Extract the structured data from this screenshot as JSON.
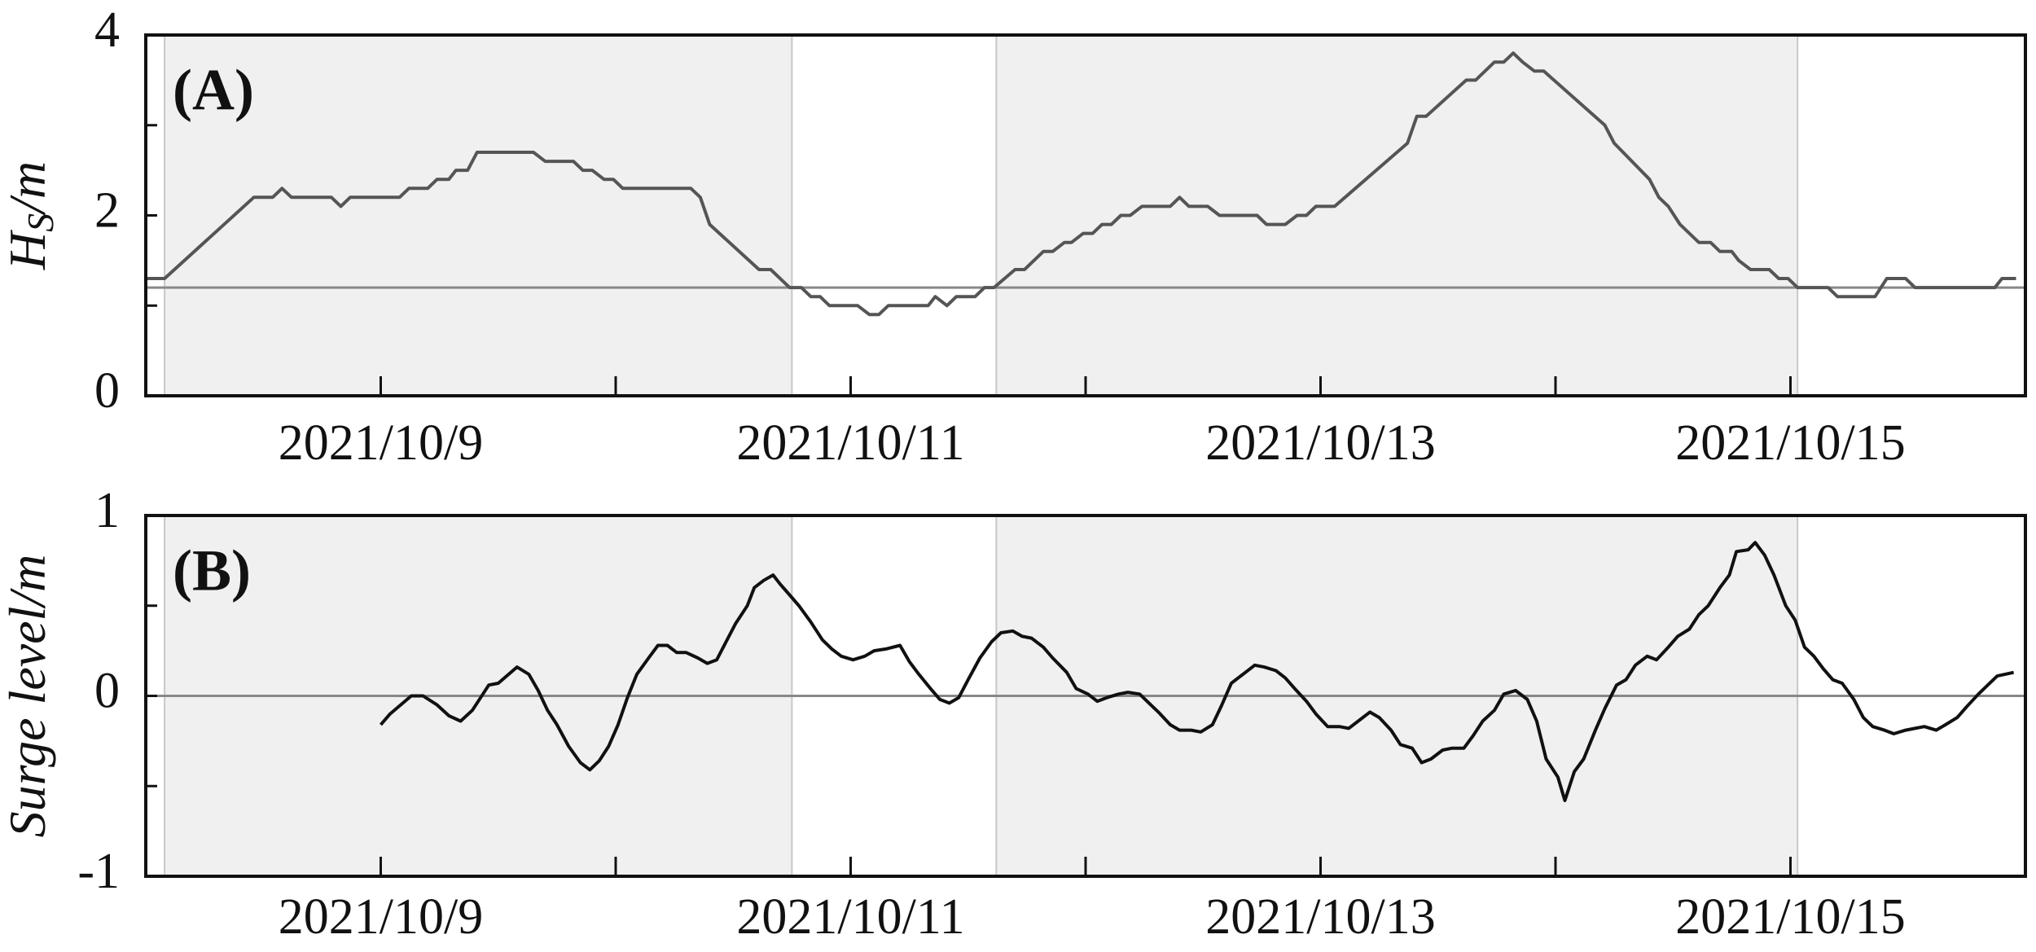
{
  "chart_data": [
    {
      "type": "line",
      "label": "(A)",
      "ylabel": {
        "main": "H",
        "sub": "S",
        "rest": "/m"
      },
      "color": "#555555",
      "hline": 1.2,
      "shaded_regions": [
        [
          8.08,
          10.75
        ],
        [
          11.62,
          15.03
        ]
      ],
      "xlim": [
        8,
        16
      ],
      "xticks": [
        {
          "value": 9,
          "label": "2021/10/9"
        },
        {
          "value": 11,
          "label": "2021/10/11"
        },
        {
          "value": 13,
          "label": "2021/10/13"
        },
        {
          "value": 15,
          "label": "2021/10/15"
        }
      ],
      "xminorticks": [
        10,
        12,
        14
      ],
      "ylim": [
        0,
        4
      ],
      "yticks": [
        0,
        2,
        4
      ],
      "yminorticks": [
        1,
        3
      ],
      "x": [
        8.0,
        8.08,
        8.46,
        8.54,
        8.58,
        8.62,
        8.79,
        8.83,
        8.87,
        9.08,
        9.12,
        9.2,
        9.24,
        9.29,
        9.32,
        9.37,
        9.41,
        9.65,
        9.7,
        9.82,
        9.86,
        9.9,
        9.95,
        9.99,
        10.03,
        10.32,
        10.36,
        10.4,
        10.61,
        10.66,
        10.74,
        10.79,
        10.83,
        10.87,
        10.91,
        11.03,
        11.08,
        11.12,
        11.16,
        11.33,
        11.36,
        11.41,
        11.45,
        11.53,
        11.57,
        11.61,
        11.7,
        11.74,
        11.82,
        11.86,
        11.91,
        11.94,
        11.99,
        12.03,
        12.07,
        12.11,
        12.15,
        12.19,
        12.24,
        12.36,
        12.4,
        12.44,
        12.52,
        12.57,
        12.73,
        12.77,
        12.85,
        12.9,
        12.94,
        12.98,
        13.06,
        13.37,
        13.41,
        13.45,
        13.62,
        13.66,
        13.74,
        13.78,
        13.82,
        13.86,
        13.91,
        13.95,
        14.21,
        14.25,
        14.4,
        14.44,
        14.48,
        14.53,
        14.61,
        14.66,
        14.7,
        14.75,
        14.78,
        14.83,
        14.91,
        14.95,
        14.99,
        15.03,
        15.16,
        15.2,
        15.36,
        15.41,
        15.49,
        15.53,
        15.87,
        15.9,
        15.96
      ],
      "values": [
        1.3,
        1.3,
        2.2,
        2.2,
        2.3,
        2.2,
        2.2,
        2.1,
        2.2,
        2.2,
        2.3,
        2.3,
        2.4,
        2.4,
        2.5,
        2.5,
        2.7,
        2.7,
        2.6,
        2.6,
        2.5,
        2.5,
        2.4,
        2.4,
        2.3,
        2.3,
        2.2,
        1.9,
        1.4,
        1.4,
        1.2,
        1.2,
        1.1,
        1.1,
        1.0,
        1.0,
        0.9,
        0.9,
        1.0,
        1.0,
        1.1,
        1.0,
        1.1,
        1.1,
        1.2,
        1.2,
        1.4,
        1.4,
        1.6,
        1.6,
        1.7,
        1.7,
        1.8,
        1.8,
        1.9,
        1.9,
        2.0,
        2.0,
        2.1,
        2.1,
        2.2,
        2.1,
        2.1,
        2.0,
        2.0,
        1.9,
        1.9,
        2.0,
        2.0,
        2.1,
        2.1,
        2.8,
        3.1,
        3.1,
        3.5,
        3.5,
        3.7,
        3.7,
        3.8,
        3.7,
        3.6,
        3.6,
        3.0,
        2.8,
        2.4,
        2.2,
        2.1,
        1.9,
        1.7,
        1.7,
        1.6,
        1.6,
        1.5,
        1.4,
        1.4,
        1.3,
        1.3,
        1.2,
        1.2,
        1.1,
        1.1,
        1.3,
        1.3,
        1.2,
        1.2,
        1.3,
        1.3
      ]
    },
    {
      "type": "line",
      "label": "(B)",
      "ylabel": {
        "main": "Surge level/m"
      },
      "color": "#111111",
      "hline": 0,
      "shaded_regions": [
        [
          8.08,
          10.75
        ],
        [
          11.62,
          15.03
        ]
      ],
      "xlim": [
        8,
        16
      ],
      "xticks": [
        {
          "value": 9,
          "label": "2021/10/9"
        },
        {
          "value": 11,
          "label": "2021/10/11"
        },
        {
          "value": 13,
          "label": "2021/10/13"
        },
        {
          "value": 15,
          "label": "2021/10/15"
        }
      ],
      "xminorticks": [
        10,
        12,
        14
      ],
      "ylim": [
        -1,
        1
      ],
      "yticks": [
        -1,
        0,
        1
      ],
      "yminorticks": [
        -0.5,
        0.5
      ],
      "x": [
        9.0,
        9.04,
        9.13,
        9.18,
        9.24,
        9.29,
        9.34,
        9.39,
        9.46,
        9.5,
        9.58,
        9.63,
        9.67,
        9.71,
        9.75,
        9.8,
        9.85,
        9.89,
        9.93,
        9.97,
        10.01,
        10.05,
        10.09,
        10.14,
        10.18,
        10.22,
        10.26,
        10.3,
        10.35,
        10.39,
        10.43,
        10.47,
        10.51,
        10.56,
        10.59,
        10.63,
        10.67,
        10.7,
        10.74,
        10.78,
        10.83,
        10.88,
        10.92,
        10.96,
        11.01,
        11.06,
        11.1,
        11.15,
        11.21,
        11.25,
        11.29,
        11.34,
        11.38,
        11.42,
        11.46,
        11.5,
        11.55,
        11.6,
        11.64,
        11.69,
        11.73,
        11.77,
        11.82,
        11.86,
        11.92,
        11.96,
        12.01,
        12.05,
        12.09,
        12.14,
        12.18,
        12.23,
        12.27,
        12.31,
        12.36,
        12.4,
        12.45,
        12.49,
        12.54,
        12.58,
        12.62,
        12.67,
        12.72,
        12.76,
        12.81,
        12.85,
        12.89,
        12.94,
        12.98,
        13.03,
        13.08,
        13.12,
        13.16,
        13.21,
        13.25,
        13.3,
        13.34,
        13.39,
        13.43,
        13.47,
        13.52,
        13.56,
        13.61,
        13.65,
        13.69,
        13.74,
        13.78,
        13.83,
        13.88,
        13.92,
        13.96,
        14.01,
        14.04,
        14.08,
        14.12,
        14.17,
        14.21,
        14.26,
        14.3,
        14.34,
        14.39,
        14.43,
        14.48,
        14.52,
        14.57,
        14.61,
        14.65,
        14.7,
        14.74,
        14.77,
        14.82,
        14.85,
        14.89,
        14.93,
        14.98,
        15.02,
        15.06,
        15.1,
        15.14,
        15.18,
        15.22,
        15.27,
        15.31,
        15.35,
        15.4,
        15.44,
        15.49,
        15.53,
        15.57,
        15.62,
        15.66,
        15.71,
        15.75,
        15.8,
        15.84,
        15.88,
        15.95
      ],
      "values": [
        -0.16,
        -0.1,
        0.0,
        0.0,
        -0.05,
        -0.11,
        -0.14,
        -0.08,
        0.06,
        0.07,
        0.16,
        0.12,
        0.03,
        -0.08,
        -0.16,
        -0.28,
        -0.37,
        -0.41,
        -0.36,
        -0.28,
        -0.16,
        -0.01,
        0.12,
        0.21,
        0.28,
        0.28,
        0.24,
        0.24,
        0.21,
        0.18,
        0.2,
        0.3,
        0.4,
        0.5,
        0.6,
        0.64,
        0.67,
        0.62,
        0.56,
        0.5,
        0.41,
        0.31,
        0.26,
        0.22,
        0.2,
        0.22,
        0.25,
        0.26,
        0.28,
        0.19,
        0.12,
        0.04,
        -0.02,
        -0.04,
        -0.01,
        0.09,
        0.21,
        0.3,
        0.35,
        0.36,
        0.33,
        0.32,
        0.27,
        0.21,
        0.13,
        0.04,
        0.01,
        -0.03,
        -0.01,
        0.01,
        0.02,
        0.01,
        -0.04,
        -0.09,
        -0.16,
        -0.19,
        -0.19,
        -0.2,
        -0.16,
        -0.05,
        0.07,
        0.12,
        0.17,
        0.16,
        0.14,
        0.1,
        0.04,
        -0.03,
        -0.1,
        -0.17,
        -0.17,
        -0.18,
        -0.14,
        -0.09,
        -0.12,
        -0.19,
        -0.27,
        -0.29,
        -0.37,
        -0.35,
        -0.3,
        -0.29,
        -0.29,
        -0.22,
        -0.14,
        -0.08,
        0.01,
        0.03,
        -0.02,
        -0.14,
        -0.35,
        -0.45,
        -0.58,
        -0.42,
        -0.35,
        -0.19,
        -0.07,
        0.06,
        0.09,
        0.17,
        0.22,
        0.2,
        0.27,
        0.33,
        0.37,
        0.45,
        0.5,
        0.6,
        0.67,
        0.8,
        0.81,
        0.85,
        0.78,
        0.67,
        0.5,
        0.42,
        0.27,
        0.22,
        0.15,
        0.09,
        0.07,
        -0.02,
        -0.12,
        -0.17,
        -0.19,
        -0.21,
        -0.19,
        -0.18,
        -0.17,
        -0.19,
        -0.16,
        -0.12,
        -0.06,
        0.01,
        0.06,
        0.11,
        0.13
      ]
    }
  ]
}
